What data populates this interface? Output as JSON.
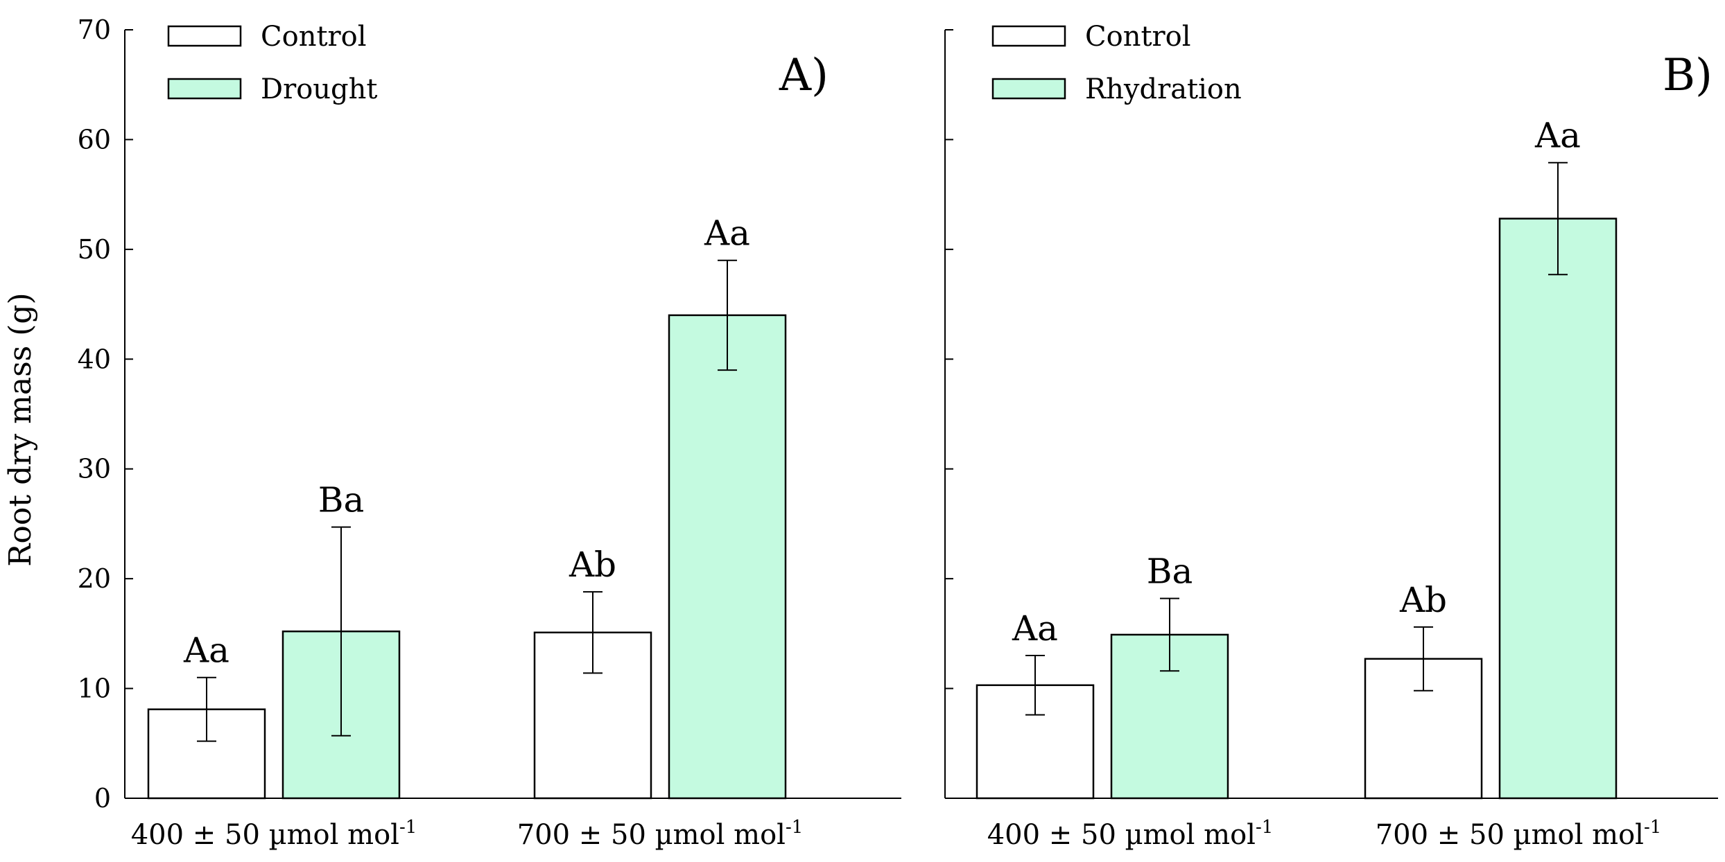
{
  "ylabel": "Root dry mass (g)",
  "chart_data": [
    {
      "type": "bar",
      "panel_label": "A)",
      "title": "",
      "xlabel": "",
      "ylabel": "Root dry mass (g)",
      "ylim": [
        0,
        70
      ],
      "yticks": [
        0,
        10,
        20,
        30,
        40,
        50,
        60,
        70
      ],
      "grid": false,
      "legend_position": "top-left",
      "categories": [
        {
          "base": "400 ± 50 µmol mol",
          "sup": "-1"
        },
        {
          "base": "700 ± 50 µmol mol",
          "sup": "-1"
        }
      ],
      "series": [
        {
          "name": "Control",
          "color": "#ffffff",
          "values": [
            8.1,
            15.1
          ],
          "errors": [
            2.9,
            3.7
          ],
          "labels": [
            "Aa",
            "Ab"
          ]
        },
        {
          "name": "Drought",
          "color": "#c4fae0",
          "values": [
            15.2,
            44.0
          ],
          "errors": [
            9.5,
            5.0
          ],
          "labels": [
            "Ba",
            "Aa"
          ]
        }
      ]
    },
    {
      "type": "bar",
      "panel_label": "B)",
      "title": "",
      "xlabel": "",
      "ylabel": "",
      "ylim": [
        0,
        70
      ],
      "yticks": [
        0,
        10,
        20,
        30,
        40,
        50,
        60,
        70
      ],
      "grid": false,
      "legend_position": "top-left",
      "categories": [
        {
          "base": "400 ± 50 µmol mol",
          "sup": "-1"
        },
        {
          "base": "700 ± 50 µmol mol",
          "sup": "-1"
        }
      ],
      "series": [
        {
          "name": "Control",
          "color": "#ffffff",
          "values": [
            10.3,
            12.7
          ],
          "errors": [
            2.7,
            2.9
          ],
          "labels": [
            "Aa",
            "Ab"
          ]
        },
        {
          "name": "Rhydration",
          "color": "#c4fae0",
          "values": [
            14.9,
            52.8
          ],
          "errors": [
            3.3,
            5.1
          ],
          "labels": [
            "Ba",
            "Aa"
          ]
        }
      ]
    }
  ]
}
